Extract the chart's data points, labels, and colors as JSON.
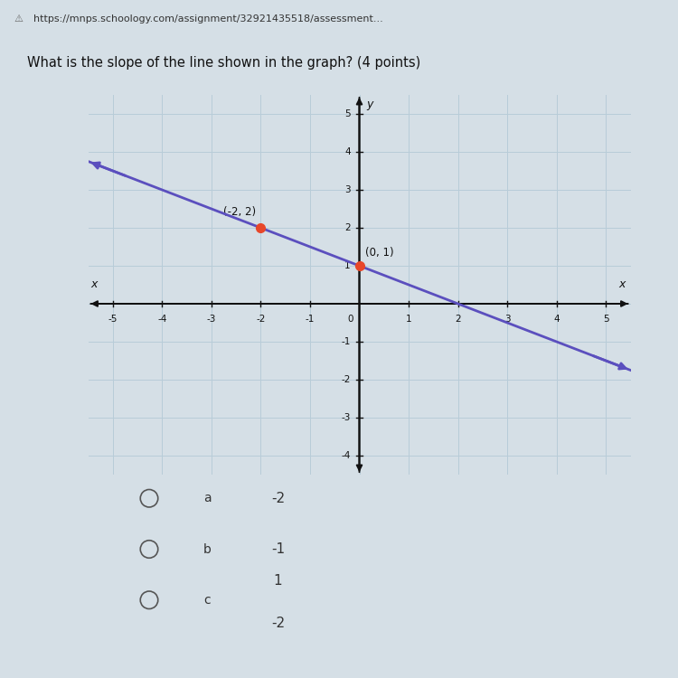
{
  "title": "What is the slope of the line shown in the graph? (4 points)",
  "url_bar": "https://mnps.schoology.com/assignment/32921435518/assessment...",
  "xlim": [
    -5.5,
    5.5
  ],
  "ylim": [
    -4.5,
    5.5
  ],
  "xticks": [
    -5,
    -4,
    -3,
    -2,
    -1,
    1,
    2,
    3,
    4,
    5
  ],
  "yticks": [
    -4,
    -3,
    -2,
    -1,
    1,
    2,
    3,
    4,
    5
  ],
  "line_color": "#5B4FBE",
  "slope": -0.5,
  "intercept": 1,
  "line_x_start": -5.5,
  "line_x_end": 5.5,
  "point1": [
    -2,
    2
  ],
  "point2": [
    0,
    1
  ],
  "point1_color": "#E8472A",
  "point2_color": "#E8472A",
  "point1_label": "(-2, 2)",
  "point2_label": "(0, 1)",
  "axis_color": "#111111",
  "grid_color": "#b8ccd8",
  "bg_color": "#dde8ef",
  "page_bg": "#d5dfe6",
  "options": [
    {
      "label": "a",
      "value": "-2"
    },
    {
      "label": "b",
      "value": "-1"
    },
    {
      "label": "c",
      "fraction": true,
      "num": "1",
      "den": "-2"
    }
  ],
  "xlabel": "x",
  "ylabel": "y",
  "origin_label": "0"
}
